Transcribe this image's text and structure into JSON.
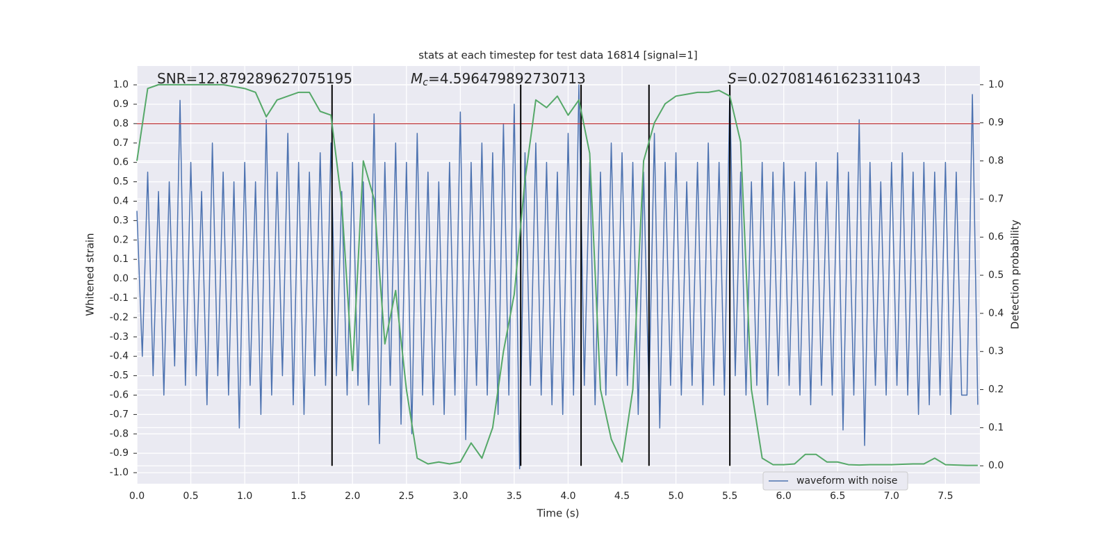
{
  "chart_data": {
    "type": "line",
    "title": "stats at each timestep for test data 16814 [signal=1]",
    "xlabel": "Time (s)",
    "ylabel": "Whitened strain",
    "y2label": "Detection probability",
    "annotations": [
      {
        "text": "SNR=12.879289627075195"
      },
      {
        "symbol": "M",
        "subscript": "c",
        "text": "=4.596479892730713"
      },
      {
        "symbol": "S",
        "text": "=0.027081461623311043"
      }
    ],
    "xlim": [
      0,
      7.82
    ],
    "ylim": [
      -1.057,
      1.097
    ],
    "y2lim": [
      -0.047,
      1.049
    ],
    "xticks": [
      {
        "value": 0,
        "label": "0.0"
      },
      0.5,
      {
        "value": 1,
        "label": "1.0"
      },
      1.5,
      {
        "value": 2,
        "label": "2.0"
      },
      2.5,
      {
        "value": 3,
        "label": "3.0"
      },
      3.5,
      {
        "value": 4,
        "label": "4.0"
      },
      4.5,
      {
        "value": 5,
        "label": "5.0"
      },
      5.5,
      {
        "value": 6,
        "label": "6.0"
      },
      6.5,
      {
        "value": 7,
        "label": "7.0"
      },
      7.5
    ],
    "yticks": [
      {
        "value": -1,
        "label": "-1.0"
      },
      -0.9,
      -0.8,
      -0.7,
      -0.6,
      -0.5,
      -0.4,
      -0.3,
      -0.2,
      -0.1,
      {
        "value": 0,
        "label": "0.0"
      },
      0.1,
      0.2,
      0.3,
      0.4,
      0.5,
      0.6,
      0.7,
      0.8,
      0.9,
      {
        "value": 1,
        "label": "1.0"
      }
    ],
    "y2ticks": [
      {
        "value": 0,
        "label": "0.0"
      },
      0.1,
      0.2,
      0.3,
      0.4,
      0.5,
      0.6,
      0.7,
      0.8,
      0.9,
      {
        "value": 1,
        "label": "1.0"
      }
    ],
    "grid": true,
    "legend": "lower right",
    "hlines": [
      {
        "value": 0.8,
        "color": "#c44e52"
      }
    ],
    "vlines": {
      "x": [
        1.81,
        3.56,
        4.12,
        4.75,
        5.5
      ],
      "y2range": [
        0,
        1
      ],
      "color": "#000000"
    },
    "series": [
      {
        "name": "waveform with noise",
        "color": "#4c72b0",
        "axis": "y",
        "x": [
          0,
          0.05,
          0.1,
          0.15,
          0.2,
          0.25,
          0.3,
          0.35,
          0.4,
          0.45,
          0.5,
          0.55,
          0.6,
          0.65,
          0.7,
          0.75,
          0.8,
          0.85,
          0.9,
          0.95,
          1,
          1.05,
          1.1,
          1.15,
          1.2,
          1.25,
          1.3,
          1.35,
          1.4,
          1.45,
          1.5,
          1.55,
          1.6,
          1.65,
          1.7,
          1.75,
          1.8,
          1.85,
          1.9,
          1.95,
          2,
          2.05,
          2.1,
          2.15,
          2.2,
          2.25,
          2.3,
          2.35,
          2.4,
          2.45,
          2.5,
          2.55,
          2.6,
          2.65,
          2.7,
          2.75,
          2.8,
          2.85,
          2.9,
          2.95,
          3,
          3.05,
          3.1,
          3.15,
          3.2,
          3.25,
          3.3,
          3.35,
          3.4,
          3.45,
          3.5,
          3.55,
          3.6,
          3.65,
          3.7,
          3.75,
          3.8,
          3.85,
          3.9,
          3.95,
          4,
          4.05,
          4.1,
          4.15,
          4.2,
          4.25,
          4.3,
          4.35,
          4.4,
          4.45,
          4.5,
          4.55,
          4.6,
          4.65,
          4.7,
          4.75,
          4.8,
          4.85,
          4.9,
          4.95,
          5,
          5.05,
          5.1,
          5.15,
          5.2,
          5.25,
          5.3,
          5.35,
          5.4,
          5.45,
          5.5,
          5.55,
          5.6,
          5.65,
          5.7,
          5.75,
          5.8,
          5.85,
          5.9,
          5.95,
          6,
          6.05,
          6.1,
          6.15,
          6.2,
          6.25,
          6.3,
          6.35,
          6.4,
          6.45,
          6.5,
          6.55,
          6.6,
          6.65,
          6.7,
          6.75,
          6.8,
          6.85,
          6.9,
          6.95,
          7,
          7.05,
          7.1,
          7.15,
          7.2,
          7.25,
          7.3,
          7.35,
          7.4,
          7.45,
          7.5,
          7.55,
          7.6,
          7.65,
          7.7,
          7.75,
          7.8
        ],
        "values": [
          0.35,
          -0.4,
          0.55,
          -0.5,
          0.45,
          -0.6,
          0.5,
          -0.45,
          0.92,
          -0.55,
          0.6,
          -0.5,
          0.45,
          -0.65,
          0.7,
          -0.5,
          0.55,
          -0.6,
          0.5,
          -0.77,
          0.6,
          -0.55,
          0.5,
          -0.7,
          0.82,
          -0.6,
          0.55,
          -0.5,
          0.75,
          -0.65,
          0.6,
          -0.7,
          0.55,
          -0.5,
          0.65,
          -0.55,
          0.7,
          -0.5,
          0.45,
          -0.6,
          0.6,
          -0.55,
          0.5,
          -0.65,
          0.85,
          -0.85,
          0.6,
          -0.55,
          0.7,
          -0.75,
          0.6,
          -0.8,
          0.75,
          -0.6,
          0.55,
          -0.65,
          0.5,
          -0.7,
          0.6,
          -0.6,
          0.86,
          -0.83,
          0.6,
          -0.55,
          0.7,
          -0.6,
          0.65,
          -0.7,
          0.8,
          -0.6,
          0.9,
          -0.98,
          0.65,
          -0.55,
          0.7,
          -0.6,
          0.6,
          -0.65,
          0.55,
          -0.7,
          0.75,
          -0.6,
          1.0,
          -0.55,
          0.6,
          -0.65,
          0.55,
          -0.6,
          0.7,
          -0.5,
          0.65,
          -0.55,
          0.6,
          -0.7,
          0.55,
          -0.6,
          0.75,
          -0.77,
          0.6,
          -0.55,
          0.65,
          -0.6,
          0.5,
          -0.55,
          0.6,
          -0.65,
          0.7,
          -0.55,
          0.6,
          -0.6,
          0.98,
          -0.5,
          0.55,
          -0.6,
          0.5,
          -0.55,
          0.6,
          -0.65,
          0.55,
          -0.5,
          0.6,
          -0.55,
          0.5,
          -0.6,
          0.55,
          -0.65,
          0.6,
          -0.55,
          0.5,
          -0.6,
          0.65,
          -0.78,
          0.55,
          -0.6,
          0.82,
          -0.86,
          0.6,
          -0.55,
          0.5,
          -0.6,
          0.6,
          -0.55,
          0.65,
          -0.6,
          0.55,
          -0.7,
          0.6,
          -0.65,
          0.55,
          -0.6,
          0.6,
          -0.7,
          0.55,
          -0.6,
          -0.6,
          0.95,
          -0.65
        ]
      },
      {
        "color": "#55a868",
        "axis": "y2",
        "x": [
          0,
          0.1,
          0.2,
          0.3,
          0.4,
          0.5,
          0.6,
          0.7,
          0.8,
          0.9,
          1,
          1.1,
          1.2,
          1.3,
          1.4,
          1.5,
          1.6,
          1.7,
          1.8,
          1.9,
          2,
          2.1,
          2.2,
          2.3,
          2.4,
          2.5,
          2.6,
          2.7,
          2.8,
          2.9,
          3,
          3.1,
          3.2,
          3.3,
          3.4,
          3.5,
          3.6,
          3.7,
          3.8,
          3.9,
          4,
          4.1,
          4.2,
          4.3,
          4.4,
          4.5,
          4.6,
          4.7,
          4.8,
          4.9,
          5,
          5.1,
          5.2,
          5.3,
          5.4,
          5.5,
          5.6,
          5.7,
          5.8,
          5.9,
          6,
          6.1,
          6.2,
          6.3,
          6.4,
          6.5,
          6.6,
          6.7,
          6.8,
          6.9,
          7,
          7.1,
          7.2,
          7.3,
          7.4,
          7.5,
          7.6,
          7.7,
          7.8
        ],
        "values": [
          0.8,
          0.99,
          1.0,
          1.0,
          1.0,
          1.0,
          1.0,
          1.0,
          1.0,
          0.995,
          0.99,
          0.98,
          0.916,
          0.96,
          0.97,
          0.98,
          0.98,
          0.93,
          0.92,
          0.69,
          0.25,
          0.8,
          0.7,
          0.32,
          0.46,
          0.2,
          0.02,
          0.005,
          0.01,
          0.005,
          0.01,
          0.06,
          0.02,
          0.1,
          0.3,
          0.45,
          0.75,
          0.96,
          0.94,
          0.97,
          0.92,
          0.96,
          0.82,
          0.2,
          0.07,
          0.01,
          0.2,
          0.8,
          0.9,
          0.95,
          0.97,
          0.975,
          0.98,
          0.98,
          0.985,
          0.97,
          0.85,
          0.2,
          0.02,
          0.003,
          0.003,
          0.005,
          0.03,
          0.03,
          0.01,
          0.01,
          0.003,
          0.002,
          0.003,
          0.003,
          0.003,
          0.004,
          0.005,
          0.005,
          0.02,
          0.003,
          0.002,
          0.001,
          0.001
        ]
      }
    ]
  }
}
